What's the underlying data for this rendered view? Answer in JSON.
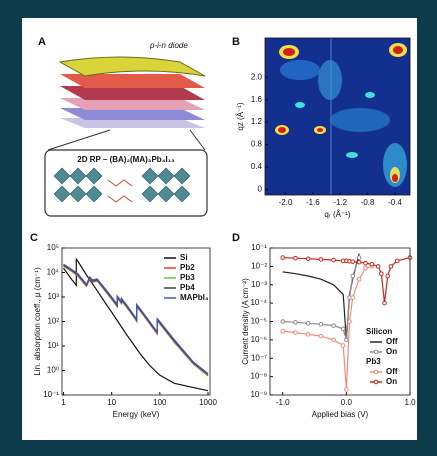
{
  "panel_a": {
    "label": "A",
    "title": "p-i-n diode",
    "formula": "2D RP – (BA)₂(MA)₃Pb₄I₁₃"
  },
  "chart_data": [
    {
      "type": "heatmap",
      "label": "B",
      "xlabel": "qᵣ (Å⁻¹)",
      "ylabel": "qz (Å⁻¹)",
      "xlim": [
        -2.3,
        -0.18
      ],
      "ylim": [
        -0.1,
        2.7
      ],
      "xticks": [
        {
          "value": -2,
          "label": "-2.0"
        },
        -1.6,
        -1.2,
        -0.8,
        -0.4
      ],
      "yticks": [
        0,
        0.4,
        0.8,
        1.2,
        1.6,
        {
          "value": 2,
          "label": "2.0"
        }
      ]
    },
    {
      "type": "line",
      "label": "C",
      "xlabel": "Energy (keV)",
      "ylabel": "Lin. absorption coeff., μ (cm⁻¹)",
      "xlog": true,
      "ylog": true,
      "xlim": [
        0.93,
        1100
      ],
      "ylim": [
        0.1,
        100000
      ],
      "xticks": [
        1,
        10,
        100,
        1000
      ],
      "yticks": [
        {
          "value": 100000,
          "label": "10⁵"
        },
        {
          "value": 10000,
          "label": "10⁴"
        },
        {
          "value": 1000,
          "label": "10³"
        },
        {
          "value": 100,
          "label": "10²"
        },
        {
          "value": 10,
          "label": "10¹"
        },
        {
          "value": 1,
          "label": "10⁰"
        },
        {
          "value": 0.1,
          "label": "10⁻¹"
        }
      ],
      "x": [
        1,
        1.5,
        1.84,
        1.84,
        2,
        3,
        3.5,
        4,
        5,
        8,
        10,
        13,
        13,
        15,
        16,
        16,
        20,
        30,
        33,
        33,
        40,
        60,
        88,
        88,
        100,
        200,
        500,
        1000
      ],
      "series": [
        {
          "name": "Si",
          "color": "#111111",
          "values": [
            15000,
            5000,
            3000,
            35000,
            28000,
            8000,
            5000,
            3500,
            1800,
            450,
            240,
            110,
            110,
            72,
            60,
            60,
            31,
            10,
            7.6,
            7.6,
            4.5,
            1.7,
            0.8,
            0.8,
            0.65,
            0.3,
            0.2,
            0.15
          ]
        },
        {
          "name": "Pb2",
          "color": "#e8402a",
          "values": [
            18000,
            11000,
            8000,
            8000,
            7000,
            2700,
            5400,
            4000,
            4500,
            1400,
            800,
            400,
            900,
            630,
            540,
            720,
            400,
            135,
            100,
            400,
            250,
            85,
            31,
            110,
            80,
            14,
            1.8,
            0.6
          ]
        },
        {
          "name": "Pb3",
          "color": "#6cbf4a",
          "values": [
            19000,
            11500,
            8500,
            8500,
            7600,
            2850,
            5700,
            4300,
            4750,
            1500,
            850,
            430,
            950,
            660,
            570,
            760,
            430,
            142,
            108,
            430,
            265,
            90,
            33,
            114,
            85,
            15,
            1.9,
            0.65
          ]
        },
        {
          "name": "Pb4",
          "color": "#444444",
          "values": [
            20000,
            12000,
            9000,
            9000,
            8000,
            3000,
            6000,
            4500,
            5000,
            1600,
            900,
            450,
            1000,
            700,
            600,
            800,
            450,
            150,
            115,
            450,
            280,
            95,
            35,
            120,
            90,
            16,
            2,
            0.7
          ]
        },
        {
          "name": "MAPbI₃",
          "color": "#4450c8",
          "values": [
            22000,
            13000,
            10000,
            10000,
            8800,
            3300,
            6600,
            5000,
            5500,
            1750,
            1000,
            500,
            1100,
            770,
            660,
            880,
            500,
            165,
            125,
            500,
            310,
            105,
            38,
            130,
            100,
            18,
            2.2,
            0.75
          ]
        }
      ]
    },
    {
      "type": "line",
      "label": "D",
      "xlabel": "Applied bias (V)",
      "ylabel": "Current density (A cm⁻²)",
      "ylog": true,
      "xlim": [
        -1.2,
        1.0
      ],
      "ylim": [
        1e-09,
        0.1
      ],
      "xticks": [
        {
          "value": -1,
          "label": "-1.0"
        },
        {
          "value": 0,
          "label": "0.0"
        },
        {
          "value": 1,
          "label": "1.0"
        }
      ],
      "yticks": [
        {
          "value": 0.1,
          "label": "10⁻¹"
        },
        {
          "value": 0.01,
          "label": "10⁻²"
        },
        {
          "value": 0.001,
          "label": "10⁻³"
        },
        {
          "value": 0.0001,
          "label": "10⁻⁴"
        },
        {
          "value": 1e-05,
          "label": "10⁻⁵"
        },
        {
          "value": 1e-06,
          "label": "10⁻⁶"
        },
        {
          "value": 1e-07,
          "label": "10⁻⁷"
        },
        {
          "value": 1e-08,
          "label": "10⁻⁸"
        },
        {
          "value": 1e-09,
          "label": "10⁻⁹"
        }
      ],
      "legend_groups": [
        "Silicon",
        "Pb3"
      ],
      "x": [
        -1,
        -0.8,
        -0.6,
        -0.4,
        -0.2,
        -0.05,
        0,
        0.05,
        0.1,
        0.2,
        0.3,
        0.4,
        0.5,
        0.55,
        0.6,
        0.65,
        0.7,
        0.8,
        1
      ],
      "series": [
        {
          "name": "Off",
          "group": 0,
          "color": "#222222",
          "values": [
            0.005,
            0.004,
            0.003,
            0.002,
            0.001,
            0.0003,
            1e-06,
            0.0003,
            0.002,
            0.05,
            null,
            null,
            null,
            null,
            null,
            null,
            null,
            null,
            null
          ]
        },
        {
          "name": "On",
          "group": 0,
          "color": "#8a8a8a",
          "marker": true,
          "values": [
            1e-05,
            9e-06,
            8e-06,
            7e-06,
            6e-06,
            4e-06,
            1e-06,
            0.0002,
            0.003,
            0.03,
            null,
            null,
            null,
            null,
            null,
            null,
            null,
            null,
            null
          ]
        },
        {
          "name": "Off",
          "group": 1,
          "color": "#f28a7a",
          "marker": true,
          "values": [
            3e-06,
            2.5e-06,
            2e-06,
            1.6e-06,
            1e-06,
            5e-07,
            2e-09,
            1e-05,
            0.0002,
            0.002,
            0.008,
            0.01,
            null,
            null,
            null,
            null,
            null,
            null,
            null
          ]
        },
        {
          "name": "On",
          "group": 1,
          "color": "#c8281e",
          "marker": true,
          "values": [
            0.03,
            0.028,
            0.026,
            0.024,
            0.022,
            0.02,
            0.02,
            0.019,
            0.018,
            0.017,
            0.015,
            0.013,
            0.01,
            0.004,
            0.0001,
            0.003,
            0.01,
            0.02,
            0.03
          ]
        }
      ]
    }
  ]
}
